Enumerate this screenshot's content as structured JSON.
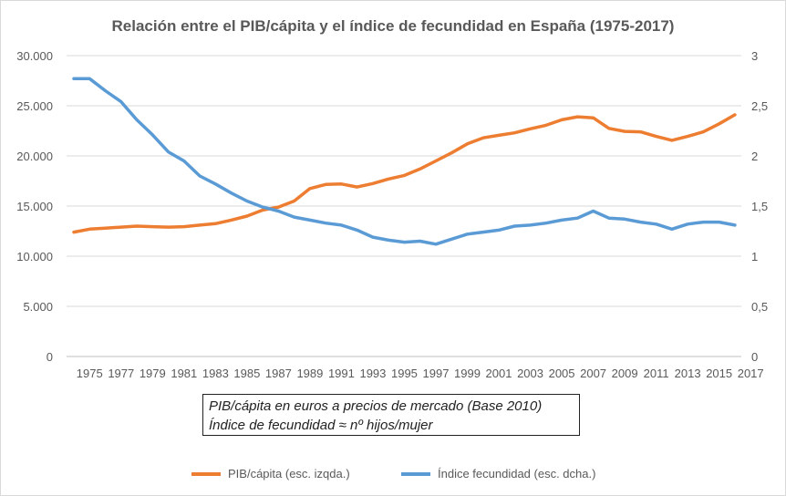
{
  "chart_data": {
    "type": "line",
    "title": "Relación entre el PIB/cápita y el índice de fecundidad en España (1975-2017)",
    "x": [
      1974,
      1975,
      1976,
      1977,
      1978,
      1979,
      1980,
      1981,
      1982,
      1983,
      1984,
      1985,
      1986,
      1987,
      1988,
      1989,
      1990,
      1991,
      1992,
      1993,
      1994,
      1995,
      1996,
      1997,
      1998,
      1999,
      2000,
      2001,
      2002,
      2003,
      2004,
      2005,
      2006,
      2007,
      2008,
      2009,
      2010,
      2011,
      2012,
      2013,
      2014,
      2015,
      2016
    ],
    "x_tick_labels": [
      "1975",
      "1977",
      "1979",
      "1981",
      "1983",
      "1985",
      "1987",
      "1989",
      "1991",
      "1993",
      "1995",
      "1997",
      "1999",
      "2001",
      "2003",
      "2005",
      "2007",
      "2009",
      "2011",
      "2013",
      "2015",
      "2017"
    ],
    "y_left": {
      "range": [
        0,
        30000
      ],
      "tick_labels": [
        "0",
        "5.000",
        "10.000",
        "15.000",
        "20.000",
        "25.000",
        "30.000"
      ]
    },
    "y_right": {
      "range": [
        0,
        3
      ],
      "tick_labels": [
        "0",
        "0,5",
        "1",
        "1,5",
        "2",
        "2,5",
        "3"
      ]
    },
    "grid": true,
    "legend_position": "bottom",
    "series": [
      {
        "name": "PIB/cápita (esc. izqda.)",
        "axis": "left",
        "color": "#ED7D31",
        "values": [
          12400,
          12700,
          12800,
          12900,
          13000,
          12950,
          12900,
          12950,
          13100,
          13250,
          13600,
          14000,
          14600,
          14900,
          15500,
          16750,
          17150,
          17200,
          16900,
          17250,
          17700,
          18050,
          18700,
          19500,
          20300,
          21200,
          21800,
          22050,
          22300,
          22700,
          23050,
          23600,
          23900,
          23800,
          22750,
          22450,
          22400,
          21950,
          21550,
          21950,
          22400,
          23200,
          24100
        ]
      },
      {
        "name": "Índice fecundidad (esc. dcha.)",
        "axis": "right",
        "color": "#5B9BD5",
        "values": [
          2.77,
          2.77,
          2.65,
          2.54,
          2.36,
          2.21,
          2.04,
          1.95,
          1.8,
          1.72,
          1.63,
          1.55,
          1.49,
          1.45,
          1.39,
          1.36,
          1.33,
          1.31,
          1.26,
          1.19,
          1.16,
          1.14,
          1.15,
          1.12,
          1.17,
          1.22,
          1.24,
          1.26,
          1.3,
          1.31,
          1.33,
          1.36,
          1.38,
          1.45,
          1.38,
          1.37,
          1.34,
          1.32,
          1.27,
          1.32,
          1.34,
          1.34,
          1.31
        ]
      }
    ],
    "annotation": [
      "PIB/cápita en euros a precios de mercado (Base 2010)",
      "Índice de fecundidad ≈ nº hijos/mujer"
    ]
  }
}
